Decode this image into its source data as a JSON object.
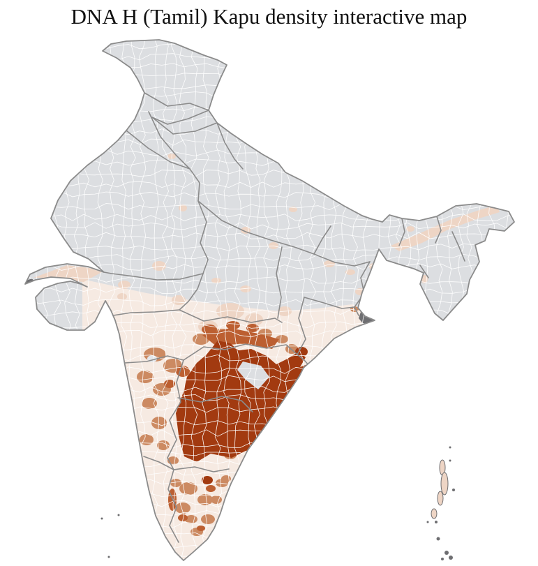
{
  "header": {
    "title": "DNA H (Tamil) Kapu density interactive map"
  },
  "map": {
    "type": "choropleth",
    "region_label": "India - district level",
    "palette": {
      "sea": "#ffffff",
      "no_data": "#dcdee1",
      "pale_blue": "#e3e6ea",
      "level_1": "#f6eae2",
      "level_2": "#eed5c5",
      "level_3": "#cc8a62",
      "level_4": "#bc5f31",
      "level_5": "#a23a10",
      "special_dark": "#6e6e71",
      "state_border": "#8b8b8b",
      "district_border": "#ffffff",
      "title_color": "#111111"
    },
    "density_scale": [
      "level_1",
      "level_2",
      "level_3",
      "level_4",
      "level_5"
    ],
    "highest_density_zone": "Andhra Pradesh / Telangana core and coastal Andhra strip",
    "medium_density_zones": [
      "North Karnataka",
      "Central Tamil Nadu",
      "South Maharashtra fringe"
    ],
    "low_density_zones": [
      "Odisha",
      "Scattered Madhya Pradesh districts",
      "Kutch",
      "Assam valley strip"
    ],
    "no_data_zones": [
      "North India",
      "Northeast hill states",
      "Kerala coast"
    ],
    "special_dark_zones": [
      "Sundarbans",
      "Kutch west tip",
      "Nicobar islets"
    ]
  }
}
